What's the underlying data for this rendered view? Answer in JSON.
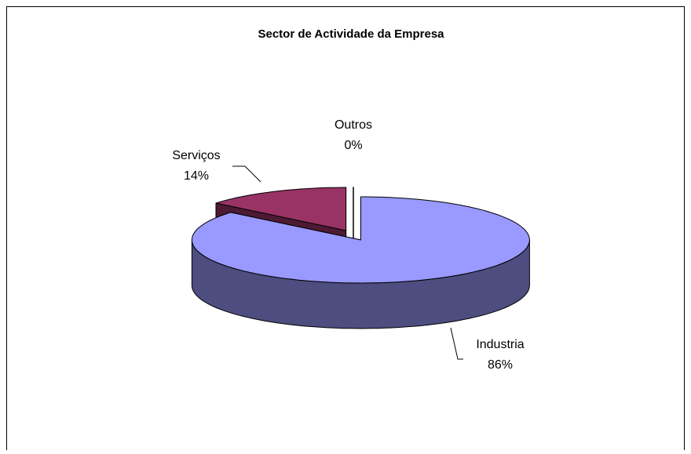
{
  "chart_data": {
    "type": "pie3d",
    "title": "Sector de Actividade da Empresa",
    "categories": [
      "Industria",
      "Serviços",
      "Outros"
    ],
    "values": [
      86,
      14,
      0
    ],
    "value_labels": [
      "86%",
      "14%",
      "0%"
    ],
    "colors": [
      "#9999ff",
      "#993366",
      "#ffffff"
    ]
  }
}
